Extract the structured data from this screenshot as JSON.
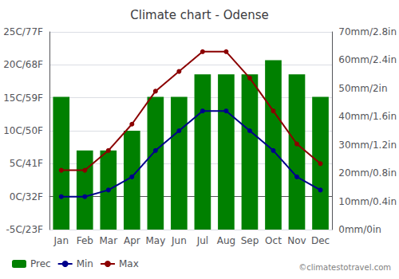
{
  "chart_data": {
    "type": "bar",
    "title": "Climate chart - Odense",
    "categories": [
      "Jan",
      "Feb",
      "Mar",
      "Apr",
      "May",
      "Jun",
      "Jul",
      "Aug",
      "Sep",
      "Oct",
      "Nov",
      "Dec"
    ],
    "series": [
      {
        "name": "Prec",
        "type": "bar",
        "color": "#008000",
        "axis": "y2",
        "values": [
          47,
          28,
          28,
          35,
          47,
          47,
          55,
          55,
          55,
          60,
          55,
          47
        ]
      },
      {
        "name": "Min",
        "type": "line",
        "color": "#00008B",
        "marker": "circle",
        "line_style": "solid",
        "values": [
          0,
          0,
          1,
          3,
          7,
          10,
          13,
          13,
          10,
          7,
          3,
          1
        ]
      },
      {
        "name": "Max",
        "type": "line",
        "color": "#8B0000",
        "marker": "circle",
        "line_style": "solid",
        "values": [
          4,
          4,
          7,
          11,
          16,
          19,
          22,
          22,
          18,
          13,
          8,
          5
        ]
      }
    ],
    "ylim": [
      -5,
      25
    ],
    "yticks": [
      {
        "value": -5,
        "label": "-5C/23F"
      },
      {
        "value": 0,
        "label": "0C/32F"
      },
      {
        "value": 5,
        "label": "5C/41F"
      },
      {
        "value": 10,
        "label": "10C/50F"
      },
      {
        "value": 15,
        "label": "15C/59F"
      },
      {
        "value": 20,
        "label": "20C/68F"
      },
      {
        "value": 25,
        "label": "25C/77F"
      }
    ],
    "y2lim": [
      0,
      70
    ],
    "y2ticks": [
      {
        "value": 0,
        "label": "0mm/0in"
      },
      {
        "value": 10,
        "label": "10mm/0.4in"
      },
      {
        "value": 20,
        "label": "20mm/0.8in"
      },
      {
        "value": 30,
        "label": "30mm/1.2in"
      },
      {
        "value": 40,
        "label": "40mm/1.6in"
      },
      {
        "value": 50,
        "label": "50mm/2in"
      },
      {
        "value": 60,
        "label": "60mm/2.4in"
      },
      {
        "value": 70,
        "label": "70mm/2.8in"
      }
    ],
    "grid": true,
    "legend": "lower left",
    "annotations": [
      "©climatestotravel.com"
    ]
  }
}
